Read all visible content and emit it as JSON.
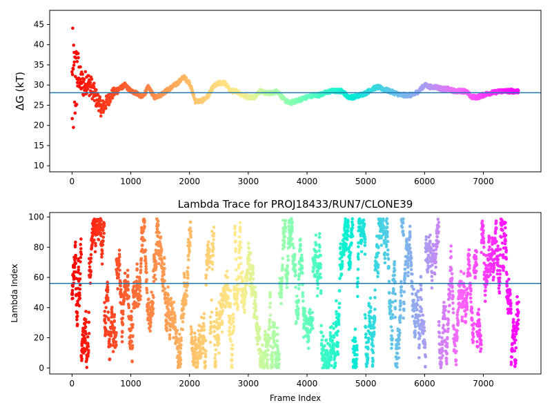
{
  "chart_data": [
    {
      "type": "scatter",
      "title": "",
      "xlabel": "",
      "ylabel": "ΔG (kT)",
      "xlim": [
        -380,
        7980
      ],
      "ylim": [
        8.5,
        48.5
      ],
      "xticks": [
        0,
        1000,
        2000,
        3000,
        4000,
        5000,
        6000,
        7000
      ],
      "yticks": [
        10,
        15,
        20,
        25,
        30,
        35,
        40,
        45
      ],
      "colormap": "rainbow (red at frame 0 to violet at last frame)",
      "hline": 28.1,
      "hline_color": "#1f77b4",
      "n_frames": 7600,
      "trend_x": [
        0,
        50,
        100,
        150,
        200,
        250,
        300,
        350,
        400,
        450,
        500,
        550,
        600,
        650,
        700,
        800,
        900,
        1000,
        1100,
        1200,
        1300,
        1400,
        1500,
        1600,
        1700,
        1800,
        1900,
        2000,
        2100,
        2200,
        2300,
        2400,
        2500,
        2600,
        2700,
        2800,
        2900,
        3000,
        3100,
        3200,
        3300,
        3400,
        3500,
        3600,
        3700,
        3800,
        3900,
        4000,
        4100,
        4200,
        4300,
        4400,
        4500,
        4600,
        4700,
        4800,
        4900,
        5000,
        5100,
        5200,
        5300,
        5400,
        5500,
        5600,
        5700,
        5800,
        5900,
        6000,
        6100,
        6200,
        6300,
        6400,
        6500,
        6600,
        6700,
        6800,
        6900,
        7000,
        7100,
        7200,
        7300,
        7400,
        7500,
        7580
      ],
      "trend_y": [
        28,
        30,
        33,
        31,
        30,
        31,
        30,
        29,
        27,
        26,
        24,
        25,
        26,
        27,
        28,
        29,
        30,
        28.5,
        28,
        27,
        29.5,
        27,
        27.5,
        28.5,
        29.5,
        30.5,
        32,
        30.5,
        26,
        26,
        27,
        29.5,
        30.5,
        30.5,
        28.5,
        28.5,
        27.5,
        27,
        27,
        28.5,
        28,
        28,
        28.5,
        26.5,
        25.5,
        26,
        26.5,
        27,
        27.5,
        27.5,
        28,
        28.5,
        28.5,
        28.5,
        27,
        27,
        27.5,
        28,
        29,
        29.5,
        29,
        28.5,
        28,
        27.5,
        27.5,
        27.5,
        28.5,
        30,
        29.5,
        29.5,
        29,
        29,
        28.5,
        28.5,
        28.5,
        27,
        27,
        27.5,
        28,
        28.2,
        28.5,
        28.5,
        28.5,
        28.5
      ]
    },
    {
      "type": "scatter",
      "title": "Lambda Trace for PROJ18433/RUN7/CLONE39",
      "xlabel": "Frame Index",
      "ylabel": "Lambda Index",
      "xlim": [
        -380,
        7980
      ],
      "ylim": [
        -4,
        103
      ],
      "xticks": [
        0,
        1000,
        2000,
        3000,
        4000,
        5000,
        6000,
        7000
      ],
      "yticks": [
        0,
        20,
        40,
        60,
        80,
        100
      ],
      "colormap": "rainbow (red at frame 0 to violet at last frame)",
      "hline": 56,
      "hline_color": "#1f77b4",
      "n_frames": 7600,
      "value_range": [
        0,
        99
      ]
    }
  ]
}
